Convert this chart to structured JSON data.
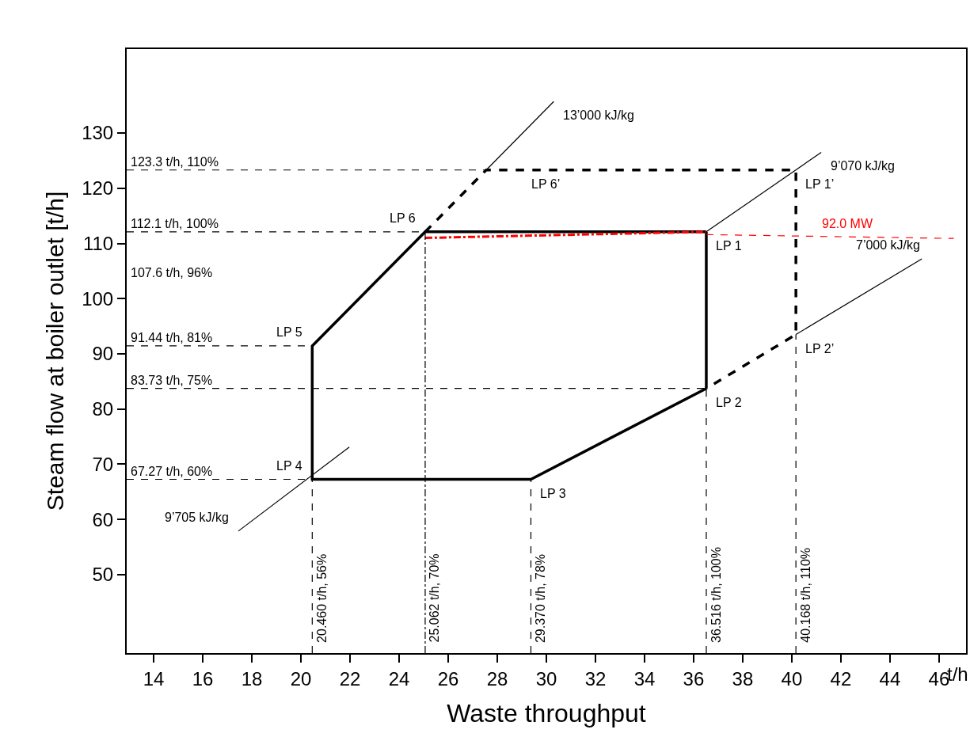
{
  "chart_data": {
    "type": "line",
    "xlabel": "Waste throughput",
    "ylabel": "Steam flow at boiler outlet [t/h]",
    "xlim": [
      12.9,
      47.1
    ],
    "ylim": [
      35.8,
      145.2
    ],
    "xticks": [
      14,
      16,
      18,
      20,
      22,
      24,
      26,
      28,
      30,
      32,
      34,
      36,
      38,
      40,
      42,
      44,
      46
    ],
    "yticks": [
      50,
      60,
      70,
      80,
      90,
      100,
      110,
      120,
      130
    ],
    "grid": false,
    "marker": "none",
    "series": [
      {
        "color": "#000000",
        "line_style": "solid",
        "x": [
          36.516,
          25.062,
          20.46,
          20.46,
          29.37,
          36.516
        ],
        "values": [
          112.1,
          112.1,
          91.44,
          67.27,
          67.27,
          83.73
        ]
      },
      {
        "color": "#000000",
        "line_style": "solid",
        "x": [
          36.516,
          36.516
        ],
        "values": [
          83.73,
          112.1
        ]
      },
      {
        "color": "#000000",
        "line_style": "dashed",
        "x": [
          25.062,
          27.55,
          40.168,
          40.168,
          36.516
        ],
        "values": [
          112.1,
          123.3,
          123.3,
          93.5,
          83.73
        ]
      },
      {
        "color": "#000000",
        "line_style": "solid",
        "x": [
          27.55,
          30.3
        ],
        "values": [
          123.3,
          135.7
        ]
      },
      {
        "color": "#000000",
        "line_style": "solid",
        "x": [
          36.516,
          41.2
        ],
        "values": [
          112.1,
          126.5
        ]
      },
      {
        "color": "#000000",
        "line_style": "solid",
        "x": [
          40.168,
          45.3
        ],
        "values": [
          93.5,
          107.2
        ]
      },
      {
        "color": "#000000",
        "line_style": "solid",
        "x": [
          17.45,
          21.97
        ],
        "values": [
          57.9,
          73.1
        ]
      },
      {
        "color": "#ff0000",
        "line_style": "dashdot",
        "x": [
          25.062,
          36.516
        ],
        "values": [
          111.0,
          112.1
        ]
      },
      {
        "color": "#ff0000",
        "line_style": "dashed",
        "x": [
          36.516,
          46.6
        ],
        "values": [
          111.6,
          110.9
        ]
      },
      {
        "color": "#000000",
        "line_style": "dashed",
        "x": [
          12.9,
          27.55
        ],
        "values": [
          123.3,
          123.3
        ]
      },
      {
        "color": "#000000",
        "line_style": "dashed",
        "x": [
          12.9,
          25.062
        ],
        "values": [
          112.1,
          112.1
        ]
      },
      {
        "color": "#000000",
        "line_style": "dashed",
        "x": [
          12.9,
          20.46
        ],
        "values": [
          91.44,
          91.44
        ]
      },
      {
        "color": "#000000",
        "line_style": "dashed",
        "x": [
          12.9,
          36.516
        ],
        "values": [
          83.73,
          83.73
        ]
      },
      {
        "color": "#000000",
        "line_style": "dashed",
        "x": [
          12.9,
          20.46
        ],
        "values": [
          67.27,
          67.27
        ]
      },
      {
        "color": "#000000",
        "line_style": "dashed",
        "x": [
          20.46,
          20.46
        ],
        "values": [
          35.8,
          67.27
        ]
      },
      {
        "color": "#000000",
        "line_style": "dashdot",
        "x": [
          25.062,
          25.062
        ],
        "values": [
          35.8,
          112.1
        ]
      },
      {
        "color": "#000000",
        "line_style": "dashed",
        "x": [
          29.37,
          29.37
        ],
        "values": [
          35.8,
          67.27
        ]
      },
      {
        "color": "#000000",
        "line_style": "dashed",
        "x": [
          36.516,
          36.516
        ],
        "values": [
          35.8,
          83.73
        ]
      },
      {
        "color": "#000000",
        "line_style": "dashed",
        "x": [
          40.168,
          40.168
        ],
        "values": [
          35.8,
          93.5
        ]
      }
    ],
    "annotations": [
      {
        "text": "13’000 kJ/kg",
        "x": 30.3,
        "y": 135.7
      },
      {
        "text": "9’070 kJ/kg",
        "x": 41.2,
        "y": 126.5
      },
      {
        "text": "7’000 kJ/kg",
        "x": 45.3,
        "y": 107.2
      },
      {
        "text": "9’705 kJ/kg",
        "x": 17.45,
        "y": 57.9
      },
      {
        "text": "LP 6",
        "x": 25.062,
        "y": 112.1
      },
      {
        "text": "LP 6’",
        "x": 29.0,
        "y": 123.3
      },
      {
        "text": "LP 1’",
        "x": 40.168,
        "y": 123.3
      },
      {
        "text": "LP 1",
        "x": 36.516,
        "y": 112.1
      },
      {
        "text": "92.0 MW",
        "x": 43.4,
        "y": 111.12
      },
      {
        "text": "LP 2’",
        "x": 40.168,
        "y": 93.5
      },
      {
        "text": "LP 2",
        "x": 36.516,
        "y": 83.73
      },
      {
        "text": "LP 5",
        "x": 20.46,
        "y": 91.44
      },
      {
        "text": "LP 3",
        "x": 29.37,
        "y": 67.27
      },
      {
        "text": "LP 4",
        "x": 20.46,
        "y": 67.27
      },
      {
        "text": "123.3 t/h, 110%",
        "y": 123.3
      },
      {
        "text": "112.1 t/h, 100%",
        "y": 112.1
      },
      "107.6 t/h, 96%",
      {
        "text": "91.44 t/h, 81%",
        "y": 91.44
      },
      {
        "text": "83.73 t/h, 75%",
        "y": 83.73
      },
      {
        "text": "67.27 t/h, 60%",
        "y": 67.27
      },
      {
        "text": "20.460 t/h, 56%",
        "x": 20.46
      },
      {
        "text": "25.062 t/h, 70%",
        "x": 25.062
      },
      {
        "text": "29.370 t/h, 78%",
        "x": 29.37
      },
      {
        "text": "36.516 t/h, 100%",
        "x": 36.516
      },
      {
        "text": "40.168 t/h, 110%",
        "x": 40.168
      },
      "t/h"
    ]
  }
}
